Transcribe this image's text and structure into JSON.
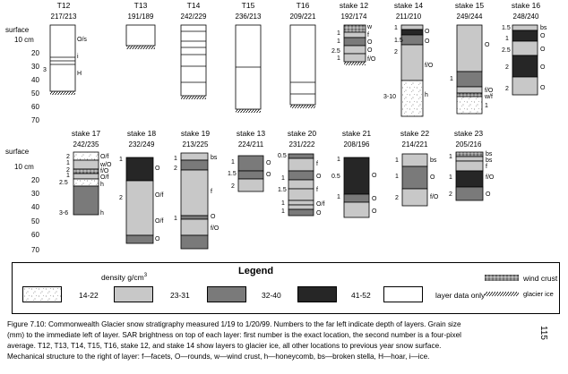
{
  "row1": {
    "depth_labels": [
      "surface",
      "10 cm",
      "20",
      "30",
      "40",
      "50",
      "60",
      "70"
    ],
    "columns": [
      {
        "id": "T12",
        "name": "T12",
        "sar": "217/213"
      },
      {
        "id": "T13",
        "name": "T13",
        "sar": "191/189"
      },
      {
        "id": "T14",
        "name": "T14",
        "sar": "242/229"
      },
      {
        "id": "T15",
        "name": "T15",
        "sar": "236/213"
      },
      {
        "id": "T16",
        "name": "T16",
        "sar": "209/221"
      },
      {
        "id": "s12",
        "name": "stake 12",
        "sar": "192/174"
      },
      {
        "id": "s14",
        "name": "stake 14",
        "sar": "211/210"
      },
      {
        "id": "s15",
        "name": "stake 15",
        "sar": "249/244"
      },
      {
        "id": "s16",
        "name": "stake 16",
        "sar": "248/240"
      }
    ]
  },
  "row2": {
    "depth_labels": [
      "surface",
      "10 cm",
      "20",
      "30",
      "40",
      "50",
      "60",
      "70"
    ],
    "columns": [
      {
        "id": "s17",
        "name": "stake 17",
        "sar": "242/235"
      },
      {
        "id": "s18",
        "name": "stake 18",
        "sar": "232/249"
      },
      {
        "id": "s19",
        "name": "stake 19",
        "sar": "213/225"
      },
      {
        "id": "s13",
        "name": "stake 13",
        "sar": "224/211"
      },
      {
        "id": "s20",
        "name": "stake 20",
        "sar": "231/222"
      },
      {
        "id": "s21",
        "name": "stake 21",
        "sar": "208/196"
      },
      {
        "id": "s22",
        "name": "stake 22",
        "sar": "214/221"
      },
      {
        "id": "s23",
        "name": "stake 23",
        "sar": "205/216"
      }
    ]
  },
  "annotations": {
    "t12": [
      "O/s",
      "i",
      "H",
      "3"
    ],
    "s12": [
      "w",
      "f",
      "O",
      "O",
      "f/O",
      "1",
      "1",
      "2.5",
      "1"
    ],
    "s14": [
      "1",
      "1.5",
      "2",
      "f/O",
      "3-10",
      "h",
      "O",
      "O"
    ],
    "s15": [
      "O",
      "1",
      "f/O",
      "w/f",
      "1"
    ],
    "s16": [
      "1.5",
      "1",
      "2.5",
      "2",
      "2",
      "bs",
      "O",
      "O",
      "O",
      "O"
    ],
    "s17": [
      "2",
      "1",
      "2",
      "1",
      "2.5",
      "3-6",
      "O/f",
      "w/O",
      "f/O",
      "O/f",
      "h",
      "h"
    ],
    "s18": [
      "1",
      "2",
      "O",
      "O/f",
      "O/f",
      "O"
    ],
    "s19": [
      "1",
      "2",
      "1",
      "bs",
      "f",
      "O",
      "f/O"
    ],
    "s13": [
      "1",
      "1.5",
      "2",
      "O",
      "O"
    ],
    "s20": [
      "0.5",
      "1",
      "1.5",
      "1",
      "1",
      "f",
      "O",
      "f",
      "O/f",
      "O"
    ],
    "s21": [
      "1",
      "0.5",
      "1",
      "O",
      "O",
      "O"
    ],
    "s22": [
      "1",
      "1",
      "2",
      "bs",
      "O",
      "f/O"
    ],
    "s23": [
      "1",
      "1",
      "2",
      "bs",
      "bs",
      "f",
      "f/O",
      "O"
    ]
  },
  "legend": {
    "title": "Legend",
    "density_title": "density g/cm",
    "density_sup": "3",
    "items": [
      {
        "label": "14-22",
        "color": "#ffffff",
        "pattern": "speckle"
      },
      {
        "label": "23-31",
        "color": "#c8c8c8"
      },
      {
        "label": "32-40",
        "color": "#7a7a7a"
      },
      {
        "label": "41-52",
        "color": "#262626"
      },
      {
        "label": "layer data only",
        "color": "#ffffff"
      }
    ],
    "wind_crust": "wind crust",
    "glacier_ice": "glacier ice"
  },
  "caption": {
    "line1": "Figure 7.10: Commonwealth Glacier snow stratigraphy measured 1/19 to 1/20/99. Numbers to the far left indicate depth of layers. Grain size",
    "line2": "(mm) to the immediate left of layer. SAR brightness on top of each layer: first number is the exact location, the second number is a four-pixel",
    "line3": "average. T12, T13, T14, T15, T16, stake 12, and stake 14 show layers to glacier ice, all other locations to previous year snow surface.",
    "line4": "Mechanical structure to the right of layer: f—facets, O—rounds, w—wind crust, h—honeycomb, bs—broken stella, H—hoar, i—ice."
  },
  "page_number": "115"
}
